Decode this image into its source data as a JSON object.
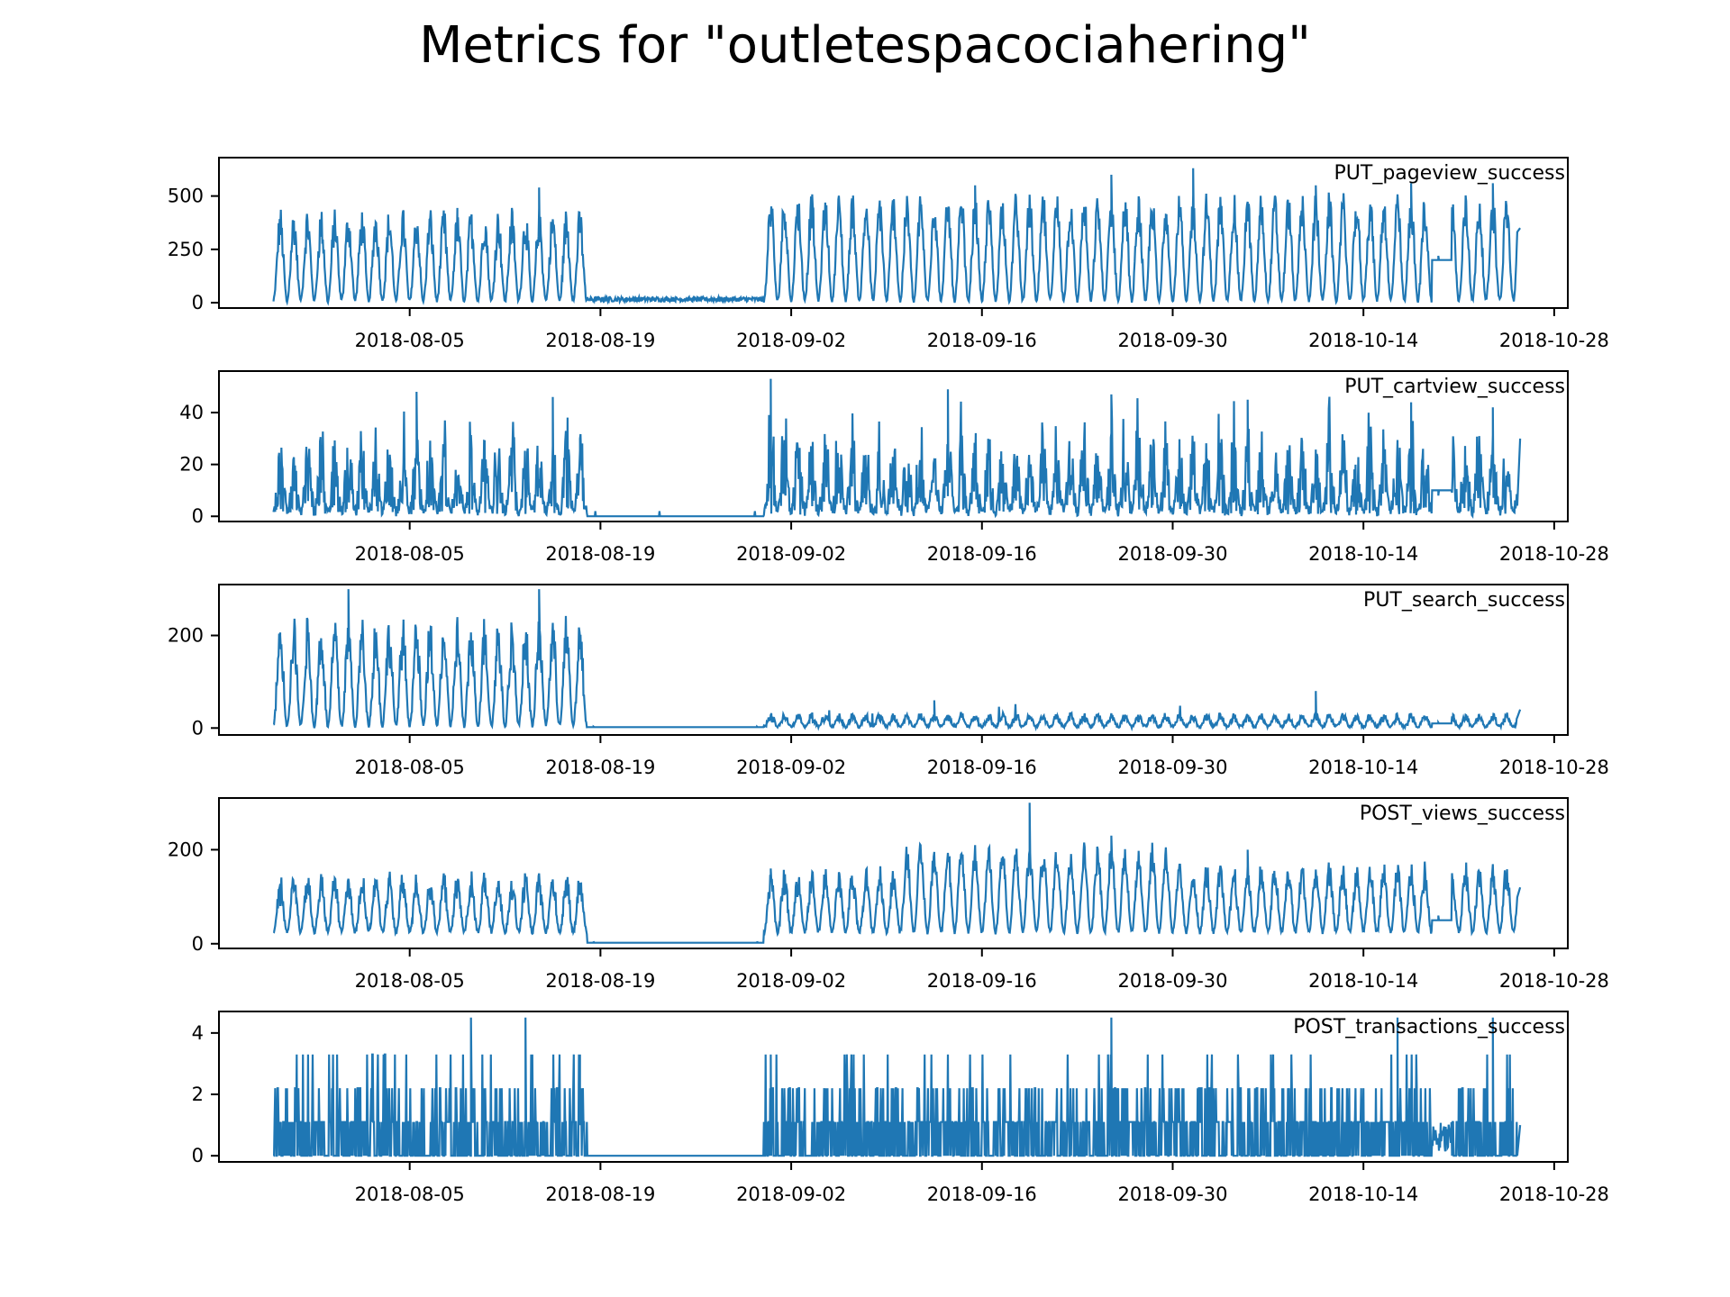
{
  "title": "Metrics for \"outletespacociahering\"",
  "line_color": "#1f77b4",
  "chart_data": {
    "type": "line",
    "x_type": "date",
    "x_range": [
      "2018-07-22",
      "2018-10-29"
    ],
    "x_ticks": [
      "2018-08-05",
      "2018-08-19",
      "2018-09-02",
      "2018-09-16",
      "2018-09-30",
      "2018-10-14",
      "2018-10-28"
    ],
    "legend_placement": "top-right",
    "grid": false,
    "panels": [
      {
        "name": "PUT_pageview_success",
        "ylim": [
          -25,
          680
        ],
        "yticks": [
          0,
          250,
          500
        ],
        "series": {
          "x": [
            "2018-07-26",
            "2018-08-08",
            "2018-08-14",
            "2018-08-17",
            "2018-08-18",
            "2018-08-30",
            "2018-08-31",
            "2018-09-09",
            "2018-09-15",
            "2018-09-25",
            "2018-10-01",
            "2018-10-10",
            "2018-10-17",
            "2018-10-19",
            "2018-10-23",
            "2018-10-25"
          ],
          "y": [
            350,
            360,
            540,
            350,
            15,
            20,
            380,
            350,
            550,
            600,
            630,
            550,
            560,
            220,
            560,
            350
          ]
        }
      },
      {
        "name": "PUT_cartview_success",
        "ylim": [
          -2,
          56
        ],
        "yticks": [
          0,
          20,
          40
        ],
        "series": {
          "x": [
            "2018-07-26",
            "2018-08-05",
            "2018-08-15",
            "2018-08-17",
            "2018-08-18",
            "2018-08-30",
            "2018-08-31",
            "2018-09-13",
            "2018-09-25",
            "2018-10-05",
            "2018-10-17",
            "2018-10-19",
            "2018-10-23",
            "2018-10-25"
          ],
          "y": [
            13,
            48,
            46,
            30,
            0,
            0,
            53,
            49,
            47,
            45,
            44,
            8,
            42,
            30
          ]
        }
      },
      {
        "name": "PUT_search_success",
        "ylim": [
          -15,
          310
        ],
        "yticks": [
          0,
          200
        ],
        "series": {
          "x": [
            "2018-07-26",
            "2018-07-31",
            "2018-08-14",
            "2018-08-17",
            "2018-08-18",
            "2018-08-30",
            "2018-08-31",
            "2018-09-12",
            "2018-10-10",
            "2018-10-19",
            "2018-10-25"
          ],
          "y": [
            200,
            300,
            300,
            170,
            3,
            3,
            25,
            60,
            80,
            12,
            40
          ]
        }
      },
      {
        "name": "POST_views_success",
        "ylim": [
          -10,
          310
        ],
        "yticks": [
          0,
          200
        ],
        "series": {
          "x": [
            "2018-07-26",
            "2018-08-05",
            "2018-08-17",
            "2018-08-18",
            "2018-08-30",
            "2018-08-31",
            "2018-09-12",
            "2018-09-19",
            "2018-09-25",
            "2018-10-05",
            "2018-10-19",
            "2018-10-25"
          ],
          "y": [
            80,
            130,
            130,
            5,
            5,
            160,
            190,
            300,
            230,
            200,
            60,
            120
          ]
        }
      },
      {
        "name": "POST_transactions_success",
        "ylim": [
          -0.2,
          4.7
        ],
        "yticks": [
          0,
          2,
          4
        ],
        "series": {
          "x": [
            "2018-07-26",
            "2018-08-09",
            "2018-08-13",
            "2018-08-17",
            "2018-08-18",
            "2018-08-30",
            "2018-08-31",
            "2018-09-25",
            "2018-10-16",
            "2018-10-23",
            "2018-10-25"
          ],
          "y": [
            1,
            4.5,
            4.5,
            1,
            0,
            0,
            3.3,
            4.5,
            4.5,
            4.5,
            1
          ]
        }
      }
    ]
  }
}
